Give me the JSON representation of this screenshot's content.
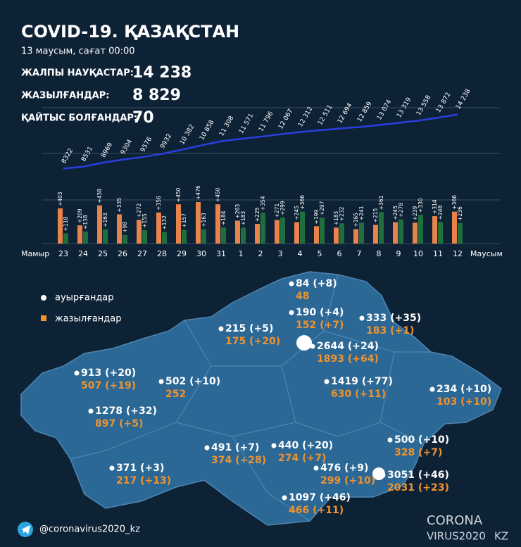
{
  "header": {
    "title": "COVID-19. ҚАЗАҚСТАН",
    "date": "13 маусым, сағат 00:00",
    "stats": [
      {
        "label": "ЖАЛПЫ НАУҚАСТАР:",
        "value": "14 238"
      },
      {
        "label": "ЖАЗЫЛҒАНДАР:",
        "value": "8 829"
      },
      {
        "label": "ҚАЙТЫС БОЛҒАНДАР:",
        "value": "70"
      }
    ]
  },
  "chart_data": [
    {
      "type": "line",
      "color": "#2a3fe0",
      "ylim": [
        7900,
        15200
      ],
      "values": [
        8322,
        8531,
        8969,
        9304,
        9576,
        9932,
        10382,
        10858,
        11308,
        11571,
        11796,
        12067,
        12312,
        12511,
        12694,
        12859,
        13074,
        13319,
        13558,
        13872,
        14238
      ],
      "value_labels": [
        "8322",
        "8531",
        "8969",
        "9304",
        "9576",
        "9932",
        "10 382",
        "10 858",
        "11 308",
        "11 571",
        "11 796",
        "12 067",
        "12 312",
        "12 511",
        "12 694",
        "12 859",
        "13 074",
        "13 319",
        "13 558",
        "13 872",
        "14 238"
      ]
    },
    {
      "type": "bar",
      "ylim": [
        0,
        500
      ],
      "month_labels": [
        "Мамыр",
        "Маусым"
      ],
      "categories": [
        "23",
        "24",
        "25",
        "26",
        "27",
        "28",
        "29",
        "30",
        "31",
        "1",
        "2",
        "3",
        "4",
        "5",
        "6",
        "7",
        "8",
        "9",
        "10",
        "11",
        "12"
      ],
      "series": [
        {
          "color": "#e8834b",
          "values": [
            403,
            209,
            438,
            335,
            272,
            356,
            450,
            476,
            450,
            263,
            225,
            271,
            245,
            199,
            183,
            165,
            215,
            245,
            239,
            314,
            366
          ],
          "value_labels": [
            "+403",
            "+209",
            "+438",
            "+335",
            "+272",
            "+356",
            "+450",
            "+476",
            "+450",
            "+263",
            "+225",
            "+271",
            "+245",
            "+199",
            "+183",
            "+165",
            "+215",
            "+245",
            "+239",
            "+314",
            "+366"
          ]
        },
        {
          "color": "#1f6e3e",
          "values": [
            118,
            138,
            163,
            98,
            155,
            132,
            157,
            163,
            184,
            183,
            354,
            299,
            366,
            297,
            232,
            241,
            361,
            278,
            330,
            248,
            236
          ],
          "value_labels": [
            "+118",
            "+138",
            "+163",
            "+98",
            "+155",
            "+132",
            "+157",
            "+163",
            "+184",
            "+183",
            "+354",
            "+299",
            "+366",
            "+297",
            "+232",
            "+241",
            "+361",
            "+278",
            "+330",
            "+248",
            "+236"
          ]
        }
      ]
    }
  ],
  "map": {
    "legend": [
      "ауырғандар",
      "жазылғандар"
    ],
    "regions": [
      {
        "cases": "84 (+8)",
        "recovered": "48"
      },
      {
        "cases": "190 (+4)",
        "recovered": "152 (+7)"
      },
      {
        "cases": "333 (+35)",
        "recovered": "183 (+1)"
      },
      {
        "cases": "215 (+5)",
        "recovered": "175 (+20)"
      },
      {
        "cases": "2644 (+24)",
        "recovered": "1893 (+64)"
      },
      {
        "cases": "913 (+20)",
        "recovered": "507 (+19)"
      },
      {
        "cases": "502 (+10)",
        "recovered": "252"
      },
      {
        "cases": "1419 (+77)",
        "recovered": "630 (+11)"
      },
      {
        "cases": "234 (+10)",
        "recovered": "103 (+10)"
      },
      {
        "cases": "1278 (+32)",
        "recovered": "897 (+5)"
      },
      {
        "cases": "500 (+10)",
        "recovered": "328 (+7)"
      },
      {
        "cases": "491 (+7)",
        "recovered": "374 (+28)"
      },
      {
        "cases": "440 (+20)",
        "recovered": "274 (+7)"
      },
      {
        "cases": "476 (+9)",
        "recovered": "299 (+10)"
      },
      {
        "cases": "3051 (+46)",
        "recovered": "2031 (+23)"
      },
      {
        "cases": "371 (+3)",
        "recovered": "217 (+13)"
      },
      {
        "cases": "1097 (+46)",
        "recovered": "466 (+11)"
      }
    ]
  },
  "footer": {
    "handle": "@coronavirus2020_kz",
    "logo": [
      "CORONA",
      "VIRUS2020",
      "KZ"
    ]
  }
}
